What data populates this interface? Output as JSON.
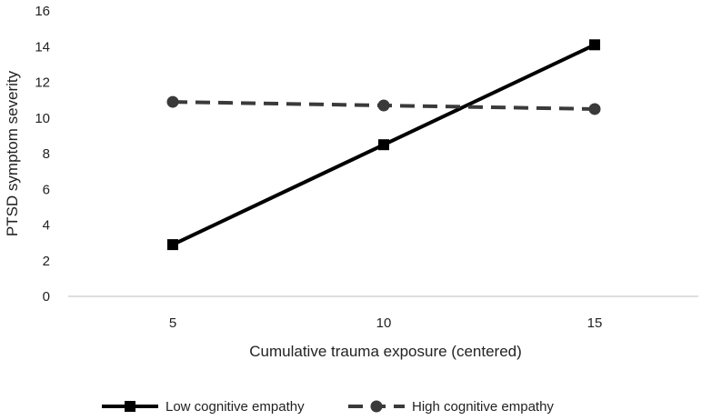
{
  "chart_data": {
    "type": "line",
    "title": "",
    "xlabel": "Cumulative trauma exposure (centered)",
    "ylabel": "PTSD symptom severity",
    "x": [
      5,
      10,
      15
    ],
    "x_tick_labels": [
      "5",
      "10",
      "15"
    ],
    "ylim": [
      0,
      16
    ],
    "y_ticks": [
      0,
      2,
      4,
      6,
      8,
      10,
      12,
      14,
      16
    ],
    "grid": false,
    "legend_position": "bottom",
    "series": [
      {
        "name": "Low cognitive empathy",
        "values": [
          2.9,
          8.5,
          14.1
        ],
        "color": "#000000",
        "line_style": "solid",
        "marker": "square"
      },
      {
        "name": "High cognitive empathy",
        "values": [
          10.9,
          10.7,
          10.5
        ],
        "color": "#3a3a3a",
        "line_style": "dashed",
        "marker": "circle"
      }
    ]
  }
}
